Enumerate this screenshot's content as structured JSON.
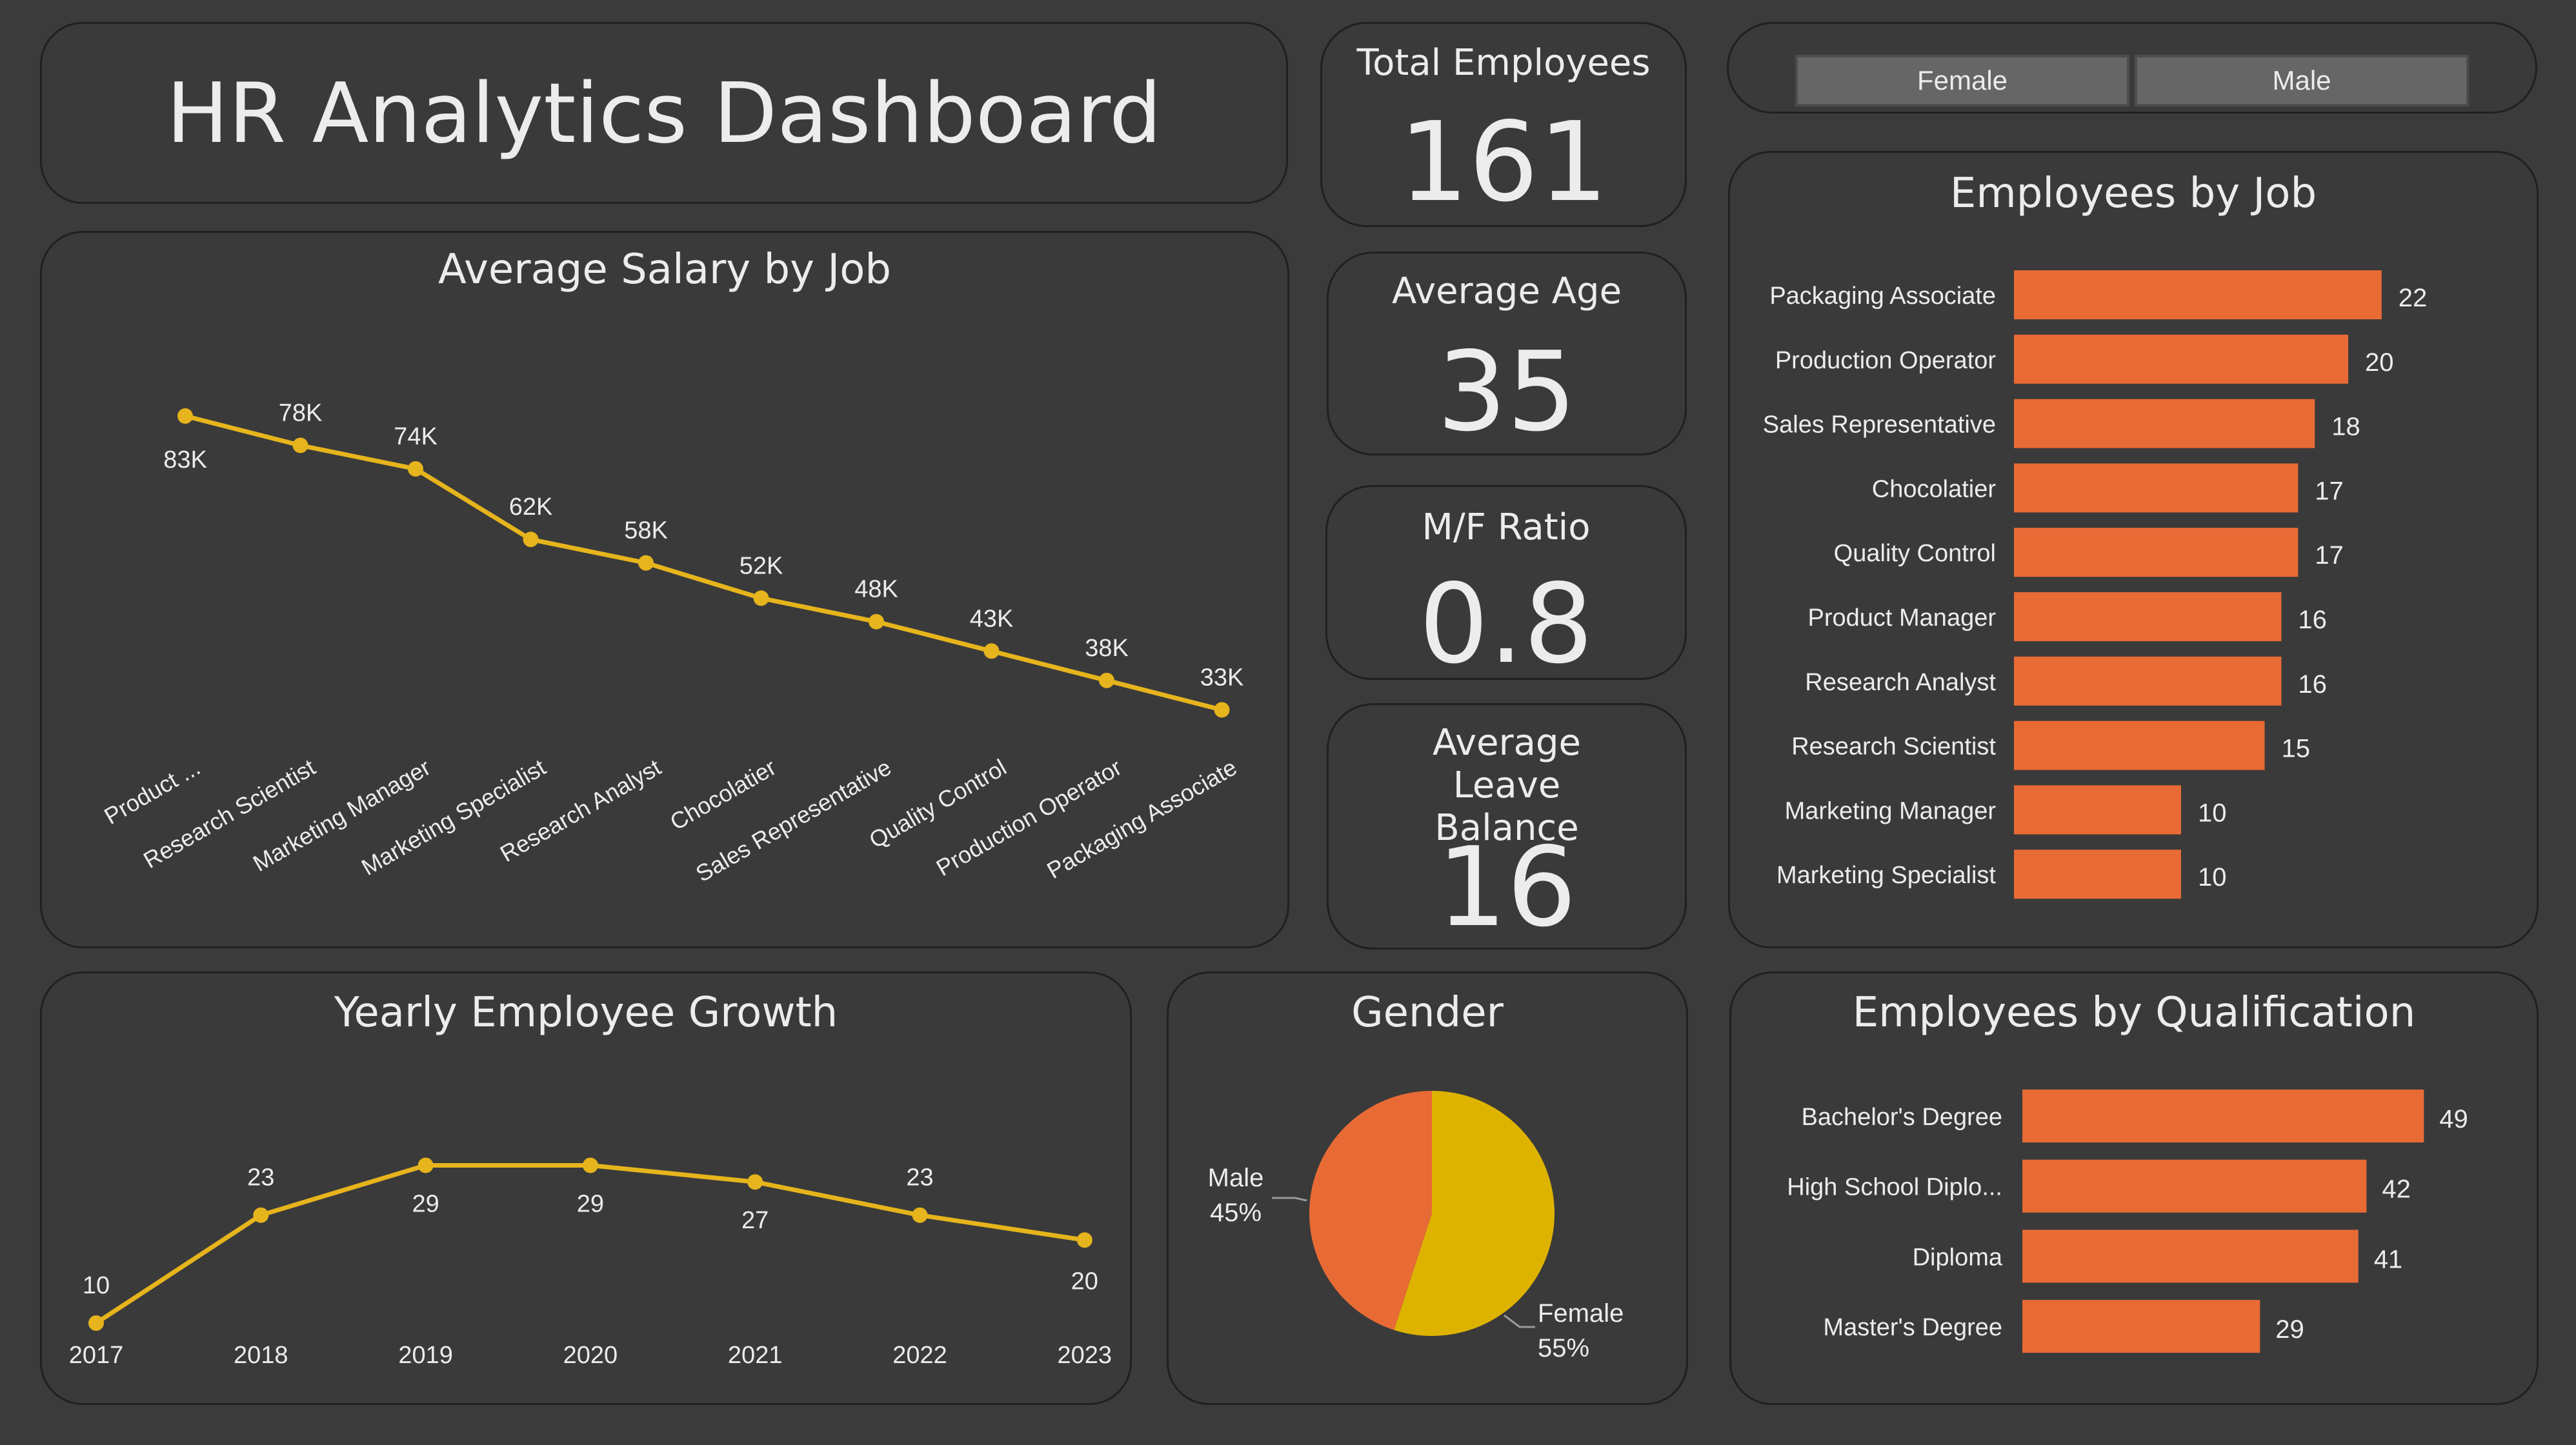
{
  "dashboard": {
    "title": "HR Analytics Dashboard"
  },
  "kpis": {
    "total_employees": {
      "label": "Total Employees",
      "value": "161"
    },
    "average_age": {
      "label": "Average Age",
      "value": "35"
    },
    "mf_ratio": {
      "label": "M/F Ratio",
      "value": "0.8"
    },
    "average_leave": {
      "label": "Average Leave Balance",
      "value": "16"
    }
  },
  "slicer": {
    "options": [
      "Female",
      "Male"
    ]
  },
  "salary_chart": {
    "title": "Average Salary by Job"
  },
  "growth_chart": {
    "title": "Yearly Employee Growth"
  },
  "gender_chart": {
    "title": "Gender"
  },
  "job_chart": {
    "title": "Employees by Job"
  },
  "qual_chart": {
    "title": "Employees by Qualification"
  },
  "colors": {
    "line": "#e6b41c",
    "bar": "#e86a35",
    "pie_male": "#e86a35",
    "pie_female": "#ddb300",
    "panel": "#3a3a3a"
  },
  "chart_data": [
    {
      "id": "salary",
      "type": "line",
      "title": "Average Salary by Job",
      "categories": [
        "Product ...",
        "Research Scientist",
        "Marketing Manager",
        "Marketing Specialist",
        "Research Analyst",
        "Chocolatier",
        "Sales Representative",
        "Quality Control",
        "Production Operator",
        "Packaging Associate"
      ],
      "values": [
        83,
        78,
        74,
        62,
        58,
        52,
        48,
        43,
        38,
        33
      ],
      "labels": [
        "83K",
        "78K",
        "74K",
        "62K",
        "58K",
        "52K",
        "48K",
        "43K",
        "38K",
        "33K"
      ],
      "unit": "K"
    },
    {
      "id": "growth",
      "type": "line",
      "title": "Yearly Employee Growth",
      "categories": [
        "2017",
        "2018",
        "2019",
        "2020",
        "2021",
        "2022",
        "2023"
      ],
      "values": [
        10,
        23,
        29,
        29,
        27,
        23,
        20
      ]
    },
    {
      "id": "gender",
      "type": "pie",
      "title": "Gender",
      "slices": [
        {
          "label": "Male",
          "value": 45,
          "pct": "45%"
        },
        {
          "label": "Female",
          "value": 55,
          "pct": "55%"
        }
      ]
    },
    {
      "id": "jobs",
      "type": "bar",
      "title": "Employees by Job",
      "categories": [
        "Packaging Associate",
        "Production Operator",
        "Sales Representative",
        "Chocolatier",
        "Quality Control",
        "Product Manager",
        "Research Analyst",
        "Research Scientist",
        "Marketing Manager",
        "Marketing Specialist"
      ],
      "values": [
        22,
        20,
        18,
        17,
        17,
        16,
        16,
        15,
        10,
        10
      ]
    },
    {
      "id": "qualification",
      "type": "bar",
      "title": "Employees by Qualification",
      "categories": [
        "Bachelor's Degree",
        "High School Diplo...",
        "Diploma",
        "Master's Degree"
      ],
      "values": [
        49,
        42,
        41,
        29
      ]
    }
  ]
}
